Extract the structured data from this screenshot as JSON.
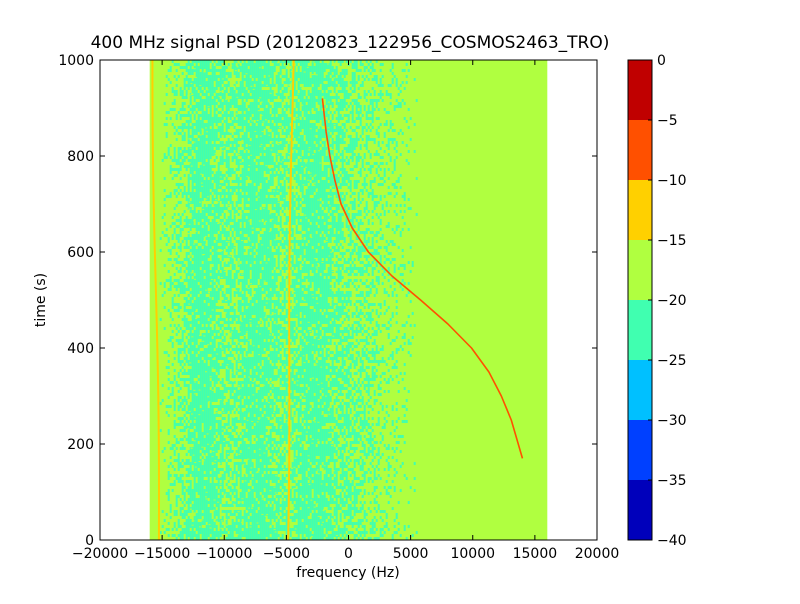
{
  "chart_data": {
    "type": "heatmap",
    "title": "400 MHz signal PSD (20120823_122956_COSMOS2463_TRO)",
    "xlabel": "frequency (Hz)",
    "ylabel": "time (s)",
    "xlim": [
      -20000,
      20000
    ],
    "ylim": [
      0,
      1000
    ],
    "x_ticks": [
      -20000,
      -15000,
      -10000,
      -5000,
      0,
      5000,
      10000,
      15000,
      20000
    ],
    "x_tick_labels": [
      "−20000",
      "−15000",
      "−10000",
      "−5000",
      "0",
      "5000",
      "10000",
      "15000",
      "20000"
    ],
    "y_ticks": [
      0,
      200,
      400,
      600,
      800,
      1000
    ],
    "y_tick_labels": [
      "0",
      "200",
      "400",
      "600",
      "800",
      "1000"
    ],
    "data_extent_x": [
      -16000,
      16000
    ],
    "grid": false,
    "colorbar": {
      "range": [
        -40,
        0
      ],
      "levels": [
        -40,
        -35,
        -30,
        -25,
        -20,
        -15,
        -10,
        -5,
        0
      ],
      "tick_labels": [
        "−40",
        "−35",
        "−30",
        "−25",
        "−20",
        "−15",
        "−10",
        "−5",
        "0"
      ],
      "colors": [
        "#0000bb",
        "#0040ff",
        "#00c0ff",
        "#40ffb0",
        "#b0ff40",
        "#ffd000",
        "#ff5000",
        "#c00000"
      ]
    },
    "background_level_db": -17.5,
    "noise_band": {
      "x_range": [
        -13000,
        -1000
      ],
      "level_db": -22.5,
      "description_levels": [
        -22.5,
        -17.5
      ]
    },
    "narrowband_lines": [
      {
        "x": -15500,
        "y_range": [
          0,
          1000
        ],
        "level_db": -12.5
      },
      {
        "x": -4700,
        "y_range": [
          0,
          1000
        ],
        "level_db": -12.5
      }
    ],
    "satellite_track": {
      "level_db": -7.5,
      "points": [
        {
          "t": 170,
          "f": 14000
        },
        {
          "t": 250,
          "f": 13100
        },
        {
          "t": 300,
          "f": 12300
        },
        {
          "t": 350,
          "f": 11300
        },
        {
          "t": 400,
          "f": 9900
        },
        {
          "t": 450,
          "f": 8000
        },
        {
          "t": 500,
          "f": 5800
        },
        {
          "t": 550,
          "f": 3500
        },
        {
          "t": 600,
          "f": 1600
        },
        {
          "t": 650,
          "f": 300
        },
        {
          "t": 700,
          "f": -600
        },
        {
          "t": 750,
          "f": -1100
        },
        {
          "t": 800,
          "f": -1500
        },
        {
          "t": 850,
          "f": -1800
        },
        {
          "t": 920,
          "f": -2100
        }
      ]
    }
  }
}
